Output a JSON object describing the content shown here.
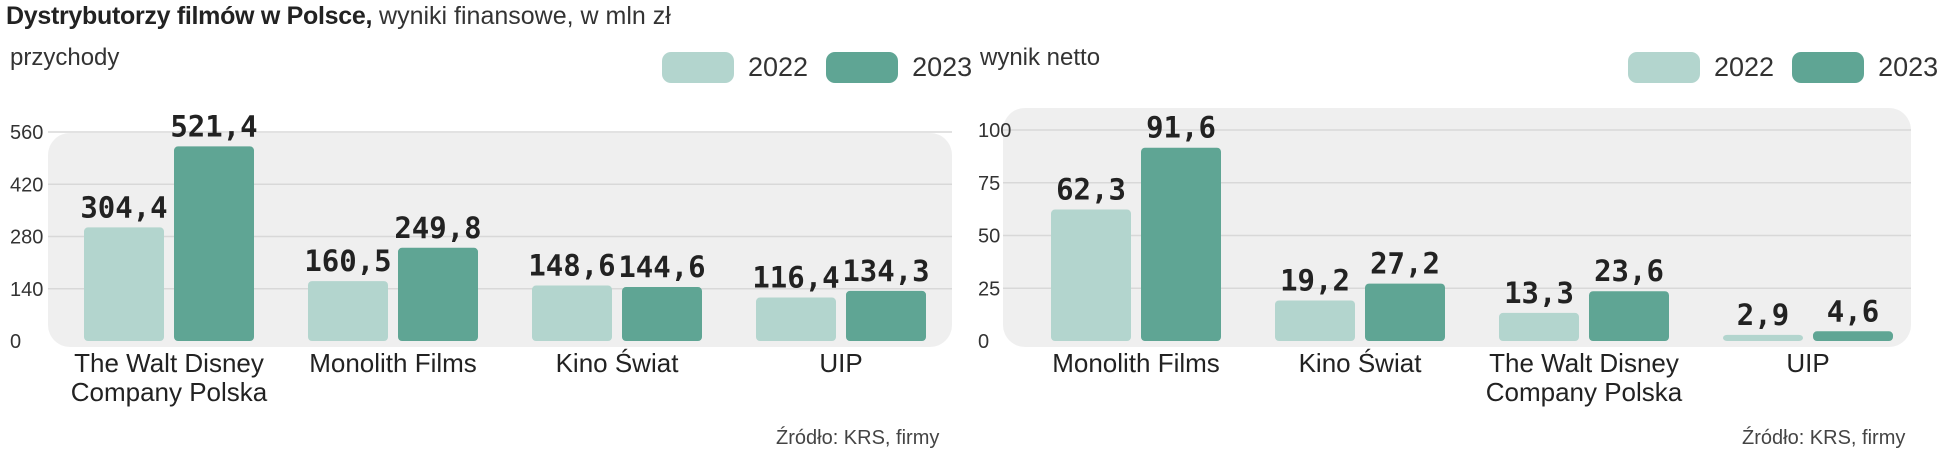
{
  "title": {
    "bold": "Dystrybutorzy filmów w Polsce,",
    "rest": " wyniki finansowe, w mln zł"
  },
  "colors": {
    "y2022": "#b3d5ce",
    "y2023": "#5fa594",
    "panel": "#efefef",
    "grid": "#d8d8d8"
  },
  "charts": {
    "revenue": {
      "label": "przychody",
      "legend": [
        "2022",
        "2023"
      ],
      "source": "Źródło: KRS, firmy"
    },
    "net": {
      "label": "wynik netto",
      "legend": [
        "2022",
        "2023"
      ],
      "source": "Źródło: KRS, firmy"
    }
  },
  "chart_data": [
    {
      "type": "bar",
      "title": "przychody",
      "categories": [
        [
          "The Walt Disney",
          "Company Polska"
        ],
        [
          "Monolith Films"
        ],
        [
          "Kino Świat"
        ],
        [
          "UIP"
        ]
      ],
      "series": [
        {
          "name": "2022",
          "values": [
            304.4,
            160.5,
            148.6,
            116.4
          ],
          "labels": [
            "304,4",
            "160,5",
            "148,6",
            "116,4"
          ]
        },
        {
          "name": "2023",
          "values": [
            521.4,
            249.8,
            144.6,
            134.3
          ],
          "labels": [
            "521,4",
            "249,8",
            "144,6",
            "134,3"
          ]
        }
      ],
      "yticks": [
        0,
        140,
        280,
        420,
        560
      ],
      "ylim": [
        0,
        560
      ]
    },
    {
      "type": "bar",
      "title": "wynik netto",
      "categories": [
        [
          "Monolith Films"
        ],
        [
          "Kino Świat"
        ],
        [
          "The Walt Disney",
          "Company Polska"
        ],
        [
          "UIP"
        ]
      ],
      "series": [
        {
          "name": "2022",
          "values": [
            62.3,
            19.2,
            13.3,
            2.9
          ],
          "labels": [
            "62,3",
            "19,2",
            "13,3",
            "2,9"
          ]
        },
        {
          "name": "2023",
          "values": [
            91.6,
            27.2,
            23.6,
            4.6
          ],
          "labels": [
            "91,6",
            "27,2",
            "23,6",
            "4,6"
          ]
        }
      ],
      "yticks": [
        0,
        25,
        50,
        75,
        100
      ],
      "ylim": [
        0,
        100
      ]
    }
  ]
}
